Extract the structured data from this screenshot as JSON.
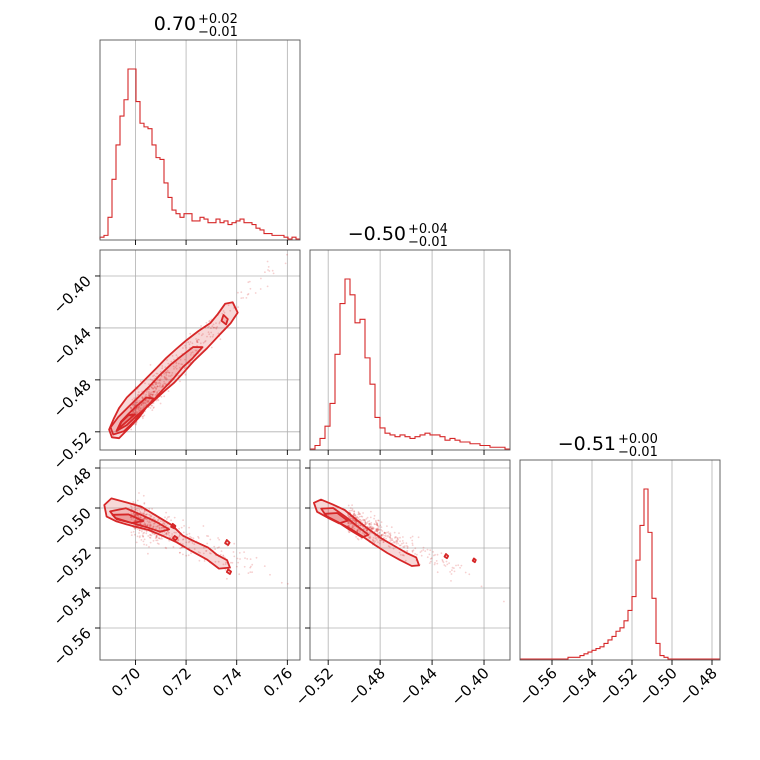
{
  "chart_data": {
    "type": "corner",
    "color": "#d62728",
    "grid": true,
    "parameters": [
      {
        "title_value": "0.70",
        "title_plus": "+0.02",
        "title_minus": "−0.01",
        "range": [
          0.686,
          0.765
        ],
        "ticks": [
          "0.70",
          "0.72",
          "0.74",
          "0.76"
        ],
        "tick_values": [
          0.7,
          0.72,
          0.74,
          0.76
        ]
      },
      {
        "title_value": "−0.50",
        "title_plus": "+0.04",
        "title_minus": "−0.01",
        "range": [
          -0.534,
          -0.38
        ],
        "ticks": [
          "−0.52",
          "−0.48",
          "−0.44",
          "−0.40"
        ],
        "tick_values": [
          -0.52,
          -0.48,
          -0.44,
          -0.4
        ]
      },
      {
        "title_value": "−0.51",
        "title_plus": "+0.00",
        "title_minus": "−0.01",
        "range": [
          -0.576,
          -0.476
        ],
        "ticks": [
          "−0.56",
          "−0.54",
          "−0.52",
          "−0.50",
          "−0.48"
        ],
        "tick_values": [
          -0.56,
          -0.54,
          -0.52,
          -0.5,
          -0.48
        ]
      }
    ],
    "histograms": [
      {
        "parameter": 0,
        "bins": [
          0.686,
          0.765
        ],
        "counts": [
          0.01,
          0.02,
          0.12,
          0.33,
          0.52,
          0.68,
          0.77,
          0.94,
          0.94,
          0.76,
          0.64,
          0.62,
          0.61,
          0.52,
          0.45,
          0.44,
          0.31,
          0.23,
          0.16,
          0.14,
          0.12,
          0.14,
          0.14,
          0.1,
          0.1,
          0.12,
          0.11,
          0.09,
          0.09,
          0.11,
          0.09,
          0.1,
          0.08,
          0.09,
          0.1,
          0.11,
          0.09,
          0.09,
          0.08,
          0.06,
          0.05,
          0.03,
          0.03,
          0.02,
          0.02,
          0.02,
          0.01,
          0.0,
          0.01,
          0.0
        ]
      },
      {
        "parameter": 1,
        "bins": [
          -0.534,
          -0.38
        ],
        "counts": [
          0.0,
          0.02,
          0.06,
          0.13,
          0.26,
          0.54,
          0.83,
          0.97,
          0.88,
          0.72,
          0.74,
          0.52,
          0.37,
          0.18,
          0.12,
          0.09,
          0.08,
          0.07,
          0.08,
          0.07,
          0.06,
          0.07,
          0.08,
          0.09,
          0.08,
          0.08,
          0.07,
          0.05,
          0.06,
          0.05,
          0.04,
          0.04,
          0.03,
          0.03,
          0.02,
          0.02,
          0.01,
          0.01,
          0.01,
          0.0
        ]
      },
      {
        "parameter": 2,
        "bins": [
          -0.576,
          -0.476
        ],
        "counts": [
          0.0,
          0.0,
          0.0,
          0.0,
          0.0,
          0.0,
          0.0,
          0.0,
          0.0,
          0.0,
          0.0,
          0.0,
          0.01,
          0.01,
          0.01,
          0.02,
          0.03,
          0.04,
          0.05,
          0.06,
          0.07,
          0.09,
          0.11,
          0.13,
          0.16,
          0.18,
          0.22,
          0.28,
          0.36,
          0.57,
          0.77,
          0.98,
          0.73,
          0.35,
          0.09,
          0.02,
          0.01,
          0.0,
          0.0,
          0.0,
          0.0,
          0.0,
          0.0,
          0.0,
          0.0,
          0.0,
          0.0,
          0.0,
          0.0,
          0.0
        ]
      }
    ],
    "pairs": [
      {
        "x": 0,
        "y": 1,
        "contours": [
          [
            [
              0.6907,
              -0.5242
            ],
            [
              0.6935,
              -0.5249
            ],
            [
              0.6982,
              -0.5157
            ],
            [
              0.7016,
              -0.5085
            ],
            [
              0.7042,
              -0.5014
            ],
            [
              0.7072,
              -0.4962
            ],
            [
              0.7111,
              -0.4892
            ],
            [
              0.7153,
              -0.4822
            ],
            [
              0.7191,
              -0.4742
            ],
            [
              0.7229,
              -0.4658
            ],
            [
              0.7283,
              -0.4556
            ],
            [
              0.7331,
              -0.4455
            ],
            [
              0.7376,
              -0.4364
            ],
            [
              0.7404,
              -0.4282
            ],
            [
              0.7384,
              -0.4203
            ],
            [
              0.7354,
              -0.4214
            ],
            [
              0.7325,
              -0.4294
            ],
            [
              0.7296,
              -0.4362
            ],
            [
              0.7249,
              -0.4424
            ],
            [
              0.7202,
              -0.4494
            ],
            [
              0.7161,
              -0.4562
            ],
            [
              0.7122,
              -0.4631
            ],
            [
              0.7086,
              -0.4704
            ],
            [
              0.7048,
              -0.4778
            ],
            [
              0.7006,
              -0.486
            ],
            [
              0.6966,
              -0.4936
            ],
            [
              0.6935,
              -0.5018
            ],
            [
              0.6914,
              -0.51
            ],
            [
              0.6896,
              -0.5183
            ]
          ],
          [
            [
              0.6912,
              -0.5221
            ],
            [
              0.6955,
              -0.5195
            ],
            [
              0.6996,
              -0.5118
            ],
            [
              0.7031,
              -0.5033
            ],
            [
              0.7071,
              -0.4958
            ],
            [
              0.7107,
              -0.4878
            ],
            [
              0.7147,
              -0.4796
            ],
            [
              0.7188,
              -0.47
            ],
            [
              0.7224,
              -0.4637
            ],
            [
              0.7265,
              -0.4548
            ],
            [
              0.7228,
              -0.4547
            ],
            [
              0.7183,
              -0.4614
            ],
            [
              0.7141,
              -0.468
            ],
            [
              0.7097,
              -0.4762
            ],
            [
              0.7055,
              -0.485
            ],
            [
              0.7015,
              -0.4927
            ],
            [
              0.6974,
              -0.5004
            ],
            [
              0.6932,
              -0.5087
            ],
            [
              0.6902,
              -0.5166
            ]
          ],
          [
            [
              0.6925,
              -0.5194
            ],
            [
              0.6966,
              -0.5148
            ],
            [
              0.6999,
              -0.5087
            ],
            [
              0.7036,
              -0.5024
            ],
            [
              0.7074,
              -0.4945
            ],
            [
              0.7043,
              -0.4936
            ],
            [
              0.7008,
              -0.4996
            ],
            [
              0.6974,
              -0.5058
            ],
            [
              0.6943,
              -0.5121
            ]
          ],
          [
            [
              0.6933,
              -0.5176
            ],
            [
              0.6967,
              -0.5118
            ],
            [
              0.6998,
              -0.5066
            ],
            [
              0.6972,
              -0.5072
            ],
            [
              0.6944,
              -0.5125
            ]
          ],
          [
            [
              0.7358,
              -0.4373
            ],
            [
              0.7365,
              -0.4332
            ],
            [
              0.7348,
              -0.43
            ],
            [
              0.734,
              -0.4345
            ]
          ]
        ],
        "points_note": "dense scatter along the ridge"
      },
      {
        "x": 0,
        "y": 2,
        "contours": [
          [
            [
              0.6877,
              -0.4985
            ],
            [
              0.6905,
              -0.4952
            ],
            [
              0.6962,
              -0.4971
            ],
            [
              0.7024,
              -0.4994
            ],
            [
              0.7085,
              -0.5041
            ],
            [
              0.7144,
              -0.5086
            ],
            [
              0.7186,
              -0.5137
            ],
            [
              0.7235,
              -0.5168
            ],
            [
              0.7287,
              -0.5198
            ],
            [
              0.7322,
              -0.5234
            ],
            [
              0.7362,
              -0.5261
            ],
            [
              0.7373,
              -0.5298
            ],
            [
              0.733,
              -0.5303
            ],
            [
              0.7282,
              -0.5257
            ],
            [
              0.7218,
              -0.5213
            ],
            [
              0.7162,
              -0.5171
            ],
            [
              0.7104,
              -0.5137
            ],
            [
              0.7052,
              -0.511
            ],
            [
              0.6985,
              -0.5089
            ],
            [
              0.6925,
              -0.5067
            ],
            [
              0.6886,
              -0.5043
            ]
          ],
          [
            [
              0.69,
              -0.5017
            ],
            [
              0.6962,
              -0.5001
            ],
            [
              0.7023,
              -0.5034
            ],
            [
              0.7083,
              -0.507
            ],
            [
              0.7133,
              -0.5107
            ],
            [
              0.7098,
              -0.5119
            ],
            [
              0.7045,
              -0.5096
            ],
            [
              0.6983,
              -0.5074
            ],
            [
              0.6921,
              -0.505
            ]
          ],
          [
            [
              0.6909,
              -0.5034
            ],
            [
              0.6973,
              -0.5032
            ],
            [
              0.7031,
              -0.5065
            ],
            [
              0.6986,
              -0.5075
            ],
            [
              0.6926,
              -0.5056
            ]
          ],
          [
            [
              0.7154,
              -0.5102
            ],
            [
              0.7158,
              -0.509
            ],
            [
              0.7147,
              -0.5079
            ],
            [
              0.7141,
              -0.5094
            ]
          ],
          [
            [
              0.7158,
              -0.5161
            ],
            [
              0.7166,
              -0.515
            ],
            [
              0.7155,
              -0.514
            ],
            [
              0.7148,
              -0.5151
            ]
          ],
          [
            [
              0.7366,
              -0.5185
            ],
            [
              0.7372,
              -0.5173
            ],
            [
              0.7361,
              -0.516
            ],
            [
              0.7354,
              -0.5176
            ]
          ],
          [
            [
              0.7373,
              -0.533
            ],
            [
              0.7378,
              -0.5318
            ],
            [
              0.7366,
              -0.5307
            ],
            [
              0.7361,
              -0.532
            ]
          ]
        ],
        "points_note": "dense scatter"
      },
      {
        "x": 1,
        "y": 2,
        "contours": [
          [
            [
              -0.531,
              -0.4974
            ],
            [
              -0.5255,
              -0.4958
            ],
            [
              -0.5165,
              -0.4982
            ],
            [
              -0.5073,
              -0.501
            ],
            [
              -0.498,
              -0.506
            ],
            [
              -0.4887,
              -0.5107
            ],
            [
              -0.479,
              -0.5152
            ],
            [
              -0.4698,
              -0.5187
            ],
            [
              -0.4596,
              -0.5225
            ],
            [
              -0.4522,
              -0.5247
            ],
            [
              -0.45,
              -0.5287
            ],
            [
              -0.4556,
              -0.529
            ],
            [
              -0.465,
              -0.5259
            ],
            [
              -0.4745,
              -0.5225
            ],
            [
              -0.484,
              -0.5185
            ],
            [
              -0.4933,
              -0.5143
            ],
            [
              -0.5028,
              -0.5104
            ],
            [
              -0.512,
              -0.5073
            ],
            [
              -0.521,
              -0.5046
            ],
            [
              -0.5285,
              -0.5019
            ]
          ],
          [
            [
              -0.5254,
              -0.5003
            ],
            [
              -0.5161,
              -0.5
            ],
            [
              -0.5068,
              -0.5043
            ],
            [
              -0.4978,
              -0.509
            ],
            [
              -0.489,
              -0.5134
            ],
            [
              -0.4937,
              -0.5147
            ],
            [
              -0.503,
              -0.5111
            ],
            [
              -0.5123,
              -0.5071
            ],
            [
              -0.5215,
              -0.504
            ]
          ],
          [
            [
              -0.5226,
              -0.5029
            ],
            [
              -0.513,
              -0.5025
            ],
            [
              -0.505,
              -0.5063
            ],
            [
              -0.5115,
              -0.5077
            ],
            [
              -0.52,
              -0.505
            ]
          ],
          [
            [
              -0.4285,
              -0.5251
            ],
            [
              -0.4276,
              -0.524
            ],
            [
              -0.4293,
              -0.523
            ],
            [
              -0.4304,
              -0.5243
            ]
          ],
          [
            [
              -0.407,
              -0.5271
            ],
            [
              -0.4063,
              -0.526
            ],
            [
              -0.4078,
              -0.5252
            ],
            [
              -0.4087,
              -0.5264
            ]
          ]
        ],
        "points_note": "dense scatter"
      }
    ]
  }
}
